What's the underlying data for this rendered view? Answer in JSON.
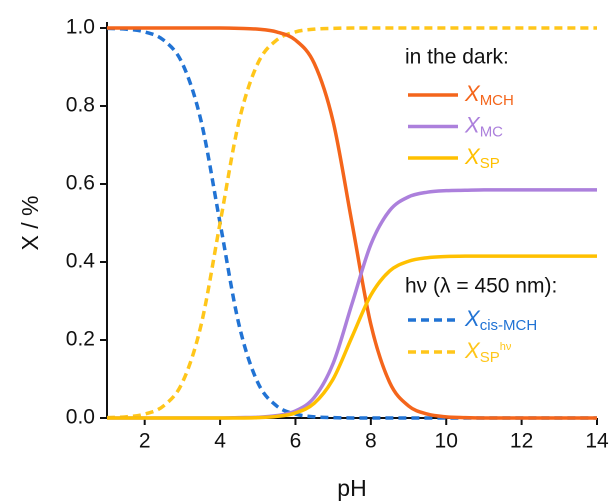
{
  "chart_data": {
    "type": "line",
    "x_label": "pH",
    "y_label": "X / %",
    "legend_titles": [
      "in the dark:",
      "hν (λ = 450 nm):"
    ],
    "x": [
      1,
      1.5,
      2,
      2.5,
      3,
      3.5,
      4,
      4.5,
      5,
      5.5,
      6,
      6.5,
      7,
      7.5,
      8,
      8.5,
      9,
      9.5,
      10,
      10.5,
      11,
      11.5,
      12,
      12.5,
      13,
      13.5,
      14
    ],
    "series": [
      {
        "name": "X",
        "sub": "MCH",
        "color": "#f4651b",
        "dashed": false,
        "values": [
          1,
          1,
          1,
          1,
          1,
          1,
          1,
          0.999,
          0.997,
          0.99,
          0.969,
          0.909,
          0.76,
          0.5,
          0.24,
          0.091,
          0.031,
          0.01,
          0.003,
          0.001,
          0,
          0,
          0,
          0,
          0,
          0,
          0
        ]
      },
      {
        "name": "X",
        "sub": "MC",
        "color": "#ac80dc",
        "dashed": false,
        "values": [
          0,
          0,
          0,
          0,
          0,
          0,
          0,
          0.001,
          0.002,
          0.006,
          0.018,
          0.053,
          0.14,
          0.293,
          0.445,
          0.532,
          0.567,
          0.579,
          0.583,
          0.584,
          0.585,
          0.585,
          0.585,
          0.585,
          0.585,
          0.585,
          0.585
        ]
      },
      {
        "name": "X",
        "sub": "SP",
        "color": "#ffc000",
        "dashed": false,
        "values": [
          0,
          0,
          0,
          0,
          0,
          0,
          0,
          0,
          0.001,
          0.004,
          0.013,
          0.038,
          0.1,
          0.208,
          0.315,
          0.377,
          0.402,
          0.411,
          0.414,
          0.415,
          0.415,
          0.415,
          0.415,
          0.415,
          0.415,
          0.415,
          0.415
        ]
      },
      {
        "name": "X",
        "sub": "cis-MCH",
        "color": "#2173d4",
        "dashed": true,
        "values": [
          0.999,
          0.997,
          0.99,
          0.969,
          0.909,
          0.76,
          0.5,
          0.24,
          0.091,
          0.031,
          0.01,
          0.003,
          0.001,
          0,
          0,
          0,
          0,
          0,
          0,
          0,
          0,
          0,
          0,
          0,
          0,
          0,
          0
        ]
      },
      {
        "name": "X",
        "sub": "SP",
        "sup": "hν",
        "color": "#ffc61a",
        "dashed": true,
        "values": [
          0.001,
          0.003,
          0.01,
          0.031,
          0.091,
          0.24,
          0.5,
          0.76,
          0.909,
          0.969,
          0.99,
          0.997,
          0.999,
          1,
          1,
          1,
          1,
          1,
          1,
          1,
          1,
          1,
          1,
          1,
          1,
          1,
          1
        ]
      }
    ],
    "xlim": [
      1,
      14
    ],
    "xticks": [
      2,
      4,
      6,
      8,
      10,
      12,
      14
    ],
    "ylim": [
      0,
      1
    ],
    "yticks": [
      {
        "value": 0,
        "label": "0.0"
      },
      0.2,
      0.4,
      0.6,
      0.8,
      {
        "value": 1,
        "label": "1.0"
      }
    ]
  }
}
